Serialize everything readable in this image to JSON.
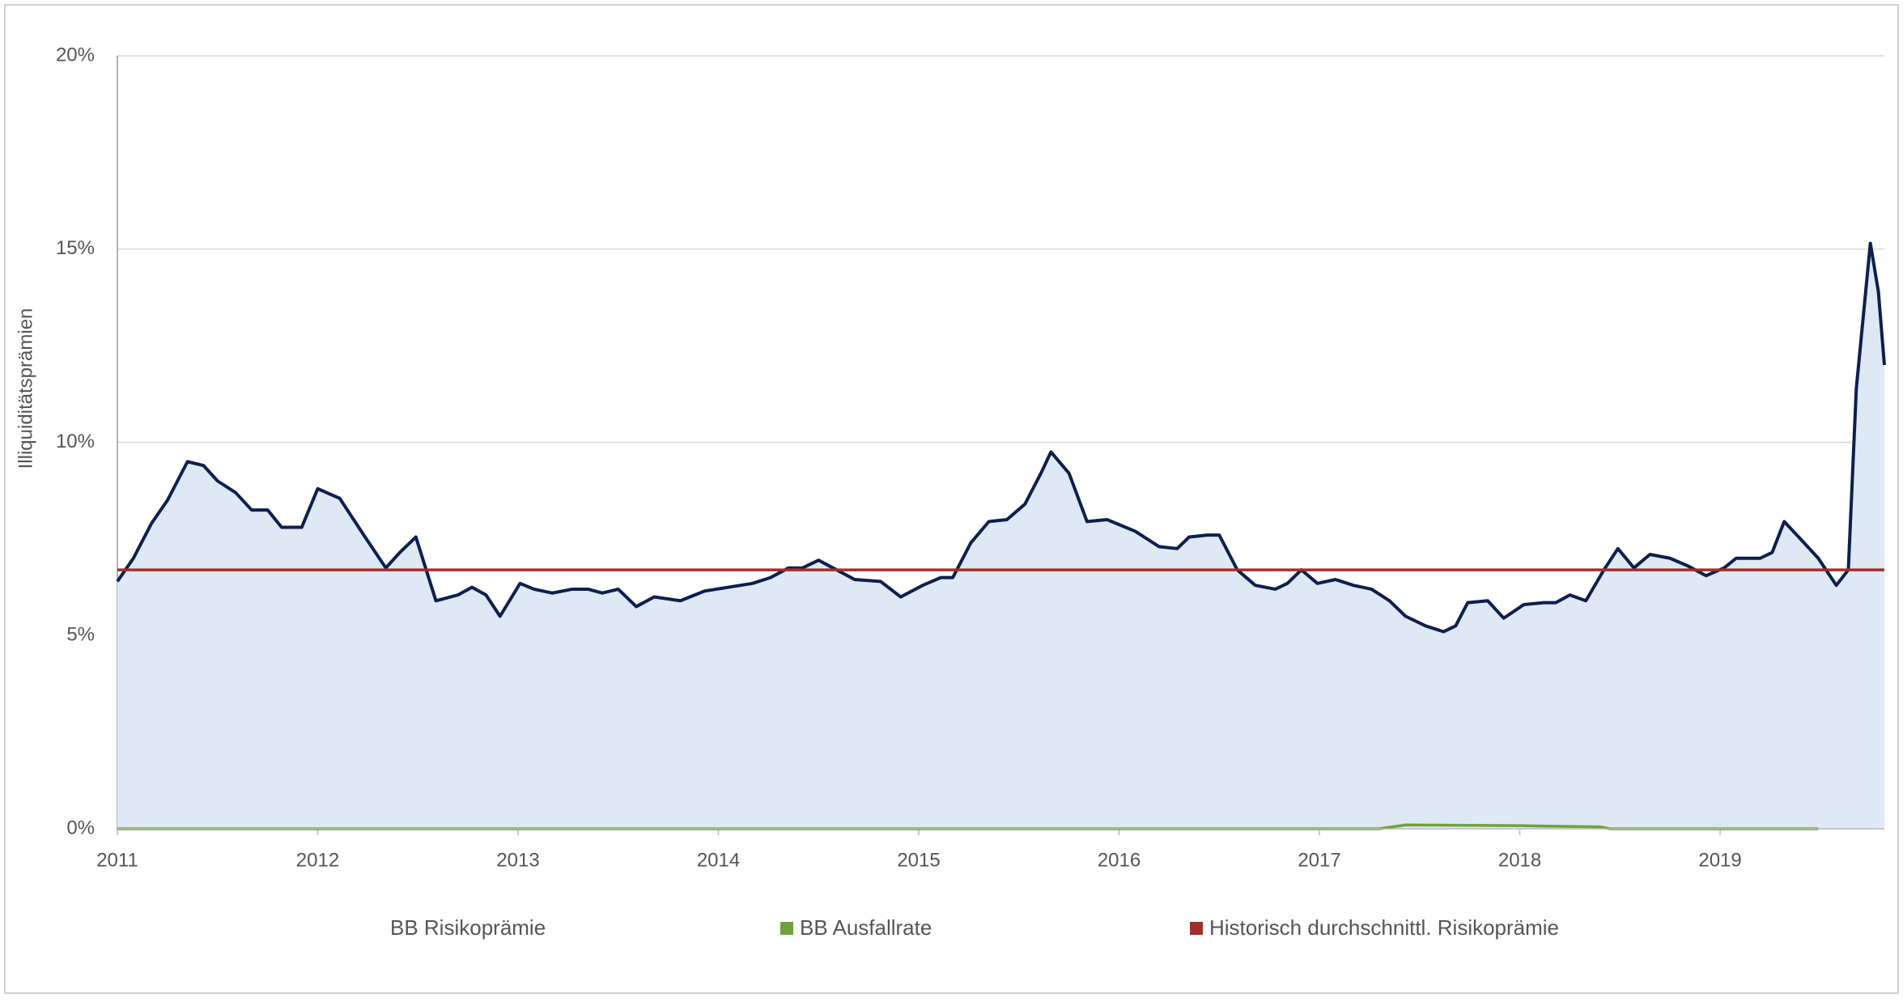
{
  "chart_data": {
    "type": "line",
    "y_label": "Illiquiditätsprämien",
    "xlim": [
      2011,
      2019.82
    ],
    "xticks": [
      2011,
      2012,
      2013,
      2014,
      2015,
      2016,
      2017,
      2018,
      2019
    ],
    "ylim": [
      0,
      20
    ],
    "yticks": [
      {
        "value": 0,
        "label": "0%"
      },
      {
        "value": 5,
        "label": "5%"
      },
      {
        "value": 10,
        "label": "10%"
      },
      {
        "value": 15,
        "label": "15%"
      },
      {
        "value": 20,
        "label": "20%"
      }
    ],
    "grid": true,
    "legend": "bottom",
    "series": [
      {
        "name": "BB Risikoprämie",
        "color": "#0d1f4f",
        "fill": "#dfe8f5",
        "x": [
          2011.0,
          2011.08,
          2011.17,
          2011.25,
          2011.35,
          2011.43,
          2011.5,
          2011.59,
          2011.67,
          2011.75,
          2011.82,
          2011.92,
          2012.0,
          2012.11,
          2012.23,
          2012.34,
          2012.41,
          2012.49,
          2012.59,
          2012.7,
          2012.77,
          2012.84,
          2012.91,
          2013.01,
          2013.08,
          2013.17,
          2013.27,
          2013.35,
          2013.42,
          2013.5,
          2013.59,
          2013.68,
          2013.81,
          2013.93,
          2014.05,
          2014.17,
          2014.26,
          2014.35,
          2014.42,
          2014.5,
          2014.59,
          2014.68,
          2014.81,
          2014.91,
          2015.02,
          2015.11,
          2015.17,
          2015.26,
          2015.35,
          2015.44,
          2015.53,
          2015.61,
          2015.66,
          2015.75,
          2015.84,
          2015.94,
          2016.08,
          2016.2,
          2016.29,
          2016.35,
          2016.44,
          2016.5,
          2016.59,
          2016.68,
          2016.78,
          2016.84,
          2016.91,
          2016.99,
          2017.08,
          2017.17,
          2017.26,
          2017.35,
          2017.43,
          2017.53,
          2017.62,
          2017.68,
          2017.74,
          2017.84,
          2017.92,
          2018.02,
          2018.12,
          2018.18,
          2018.25,
          2018.33,
          2018.42,
          2018.49,
          2018.57,
          2018.65,
          2018.75,
          2018.84,
          2018.93,
          2019.02,
          2019.08,
          2019.2,
          2019.26,
          2019.32,
          2019.41,
          2019.49,
          2019.58,
          2019.64,
          2019.68,
          2019.75,
          2019.79,
          2019.82
        ],
        "values": [
          6.4,
          7.0,
          7.9,
          8.5,
          9.5,
          9.4,
          9.0,
          8.7,
          8.25,
          8.25,
          7.8,
          7.8,
          8.8,
          8.55,
          7.6,
          6.75,
          7.15,
          7.55,
          5.9,
          6.05,
          6.25,
          6.05,
          5.5,
          6.35,
          6.2,
          6.1,
          6.2,
          6.2,
          6.1,
          6.2,
          5.75,
          6.0,
          5.9,
          6.15,
          6.25,
          6.35,
          6.5,
          6.75,
          6.75,
          6.95,
          6.7,
          6.45,
          6.4,
          6.0,
          6.3,
          6.5,
          6.5,
          7.4,
          7.95,
          8.0,
          8.4,
          9.2,
          9.75,
          9.2,
          7.95,
          8.0,
          7.7,
          7.3,
          7.25,
          7.55,
          7.6,
          7.6,
          6.7,
          6.3,
          6.2,
          6.35,
          6.7,
          6.35,
          6.45,
          6.3,
          6.2,
          5.9,
          5.5,
          5.25,
          5.1,
          5.25,
          5.85,
          5.9,
          5.45,
          5.8,
          5.85,
          5.85,
          6.05,
          5.9,
          6.7,
          7.25,
          6.75,
          7.1,
          7.0,
          6.8,
          6.55,
          6.75,
          7.0,
          7.0,
          7.15,
          7.95,
          7.45,
          7.0,
          6.3,
          6.7,
          11.4,
          15.15,
          13.9,
          12.0
        ]
      },
      {
        "name": "BB Ausfallrate",
        "color": "#70a040",
        "x": [
          2011.0,
          2017.3,
          2017.43,
          2018.0,
          2018.4,
          2018.45,
          2019.49
        ],
        "values": [
          0,
          0,
          0.1,
          0.08,
          0.05,
          0,
          0
        ]
      },
      {
        "name": "Historisch durchschnittl. Risikoprämie",
        "color": "#a0302a",
        "x": [
          2011.0,
          2019.82
        ],
        "values": [
          6.7,
          6.7
        ]
      }
    ]
  }
}
